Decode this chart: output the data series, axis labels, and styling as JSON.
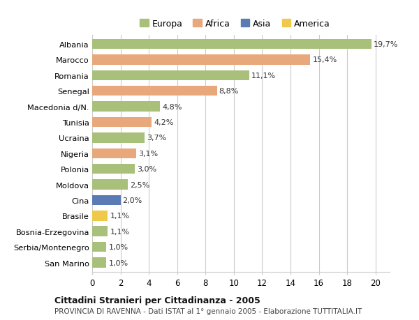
{
  "categories": [
    "Albania",
    "Marocco",
    "Romania",
    "Senegal",
    "Macedonia d/N.",
    "Tunisia",
    "Ucraina",
    "Nigeria",
    "Polonia",
    "Moldova",
    "Cina",
    "Brasile",
    "Bosnia-Erzegovina",
    "Serbia/Montenegro",
    "San Marino"
  ],
  "values": [
    19.7,
    15.4,
    11.1,
    8.8,
    4.8,
    4.2,
    3.7,
    3.1,
    3.0,
    2.5,
    2.0,
    1.1,
    1.1,
    1.0,
    1.0
  ],
  "labels": [
    "19,7%",
    "15,4%",
    "11,1%",
    "8,8%",
    "4,8%",
    "4,2%",
    "3,7%",
    "3,1%",
    "3,0%",
    "2,5%",
    "2,0%",
    "1,1%",
    "1,1%",
    "1,0%",
    "1,0%"
  ],
  "continents": [
    "Europa",
    "Africa",
    "Europa",
    "Africa",
    "Europa",
    "Africa",
    "Europa",
    "Africa",
    "Europa",
    "Europa",
    "Asia",
    "America",
    "Europa",
    "Europa",
    "Europa"
  ],
  "colors": {
    "Europa": "#a8c07a",
    "Africa": "#e8a87c",
    "Asia": "#5b7bb5",
    "America": "#f0c84a"
  },
  "legend_colors": {
    "Europa": "#a8c07a",
    "Africa": "#e8a87c",
    "Asia": "#5b7bb5",
    "America": "#f0c84a"
  },
  "xlim": [
    0,
    21
  ],
  "xticks": [
    0,
    2,
    4,
    6,
    8,
    10,
    12,
    14,
    16,
    18,
    20
  ],
  "title": "Cittadini Stranieri per Cittadinanza - 2005",
  "subtitle": "PROVINCIA DI RAVENNA - Dati ISTAT al 1° gennaio 2005 - Elaborazione TUTTITALIA.IT",
  "background_color": "#ffffff",
  "grid_color": "#cccccc"
}
